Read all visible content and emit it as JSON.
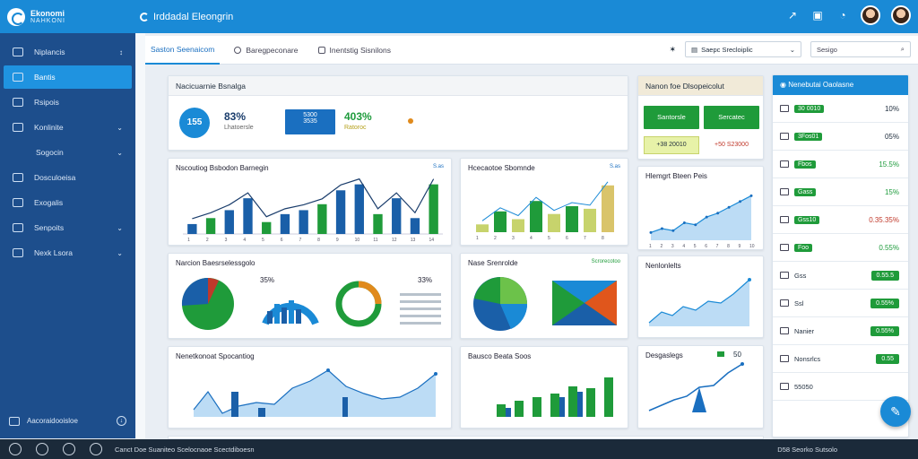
{
  "topbar": {
    "logo_title": "Ekonomi",
    "logo_sub": "NAHKONI",
    "app_title": "Irddadal Eleongrin",
    "icons": [
      "share-icon",
      "clipboard-icon",
      "bell-icon"
    ]
  },
  "sidebar": {
    "items": [
      {
        "label": "Niplancis",
        "chevron": "↕"
      },
      {
        "label": "Bantis",
        "chevron": ""
      },
      {
        "label": "Rsipois",
        "chevron": ""
      },
      {
        "label": "Konlinite",
        "chevron": "⌄"
      },
      {
        "label": "Sogocin",
        "chevron": "⌄"
      },
      {
        "label": "Dosculoeisa",
        "chevron": ""
      },
      {
        "label": "Exogalis",
        "chevron": ""
      },
      {
        "label": "Senpoits",
        "chevron": "⌄"
      },
      {
        "label": "Nexk Lsora",
        "chevron": "⌄"
      }
    ],
    "footer_label": "Aacoraidooisloe"
  },
  "tabs": [
    {
      "label": "Saston Seenaicom"
    },
    {
      "label": "Baregpeconare"
    },
    {
      "label": "Inentstig Sisnilons"
    }
  ],
  "toolbar": {
    "select_label": "Saepc Srecloiplic",
    "search_placeholder": "Sesigo"
  },
  "kpi": {
    "header": "Nacicuarnie Bsnalga",
    "ring_value": "155",
    "pct1": "83%",
    "pct1_sub": "Lhatoersle",
    "btn_top": "5300",
    "btn_bot": "3535",
    "pct2": "403%",
    "pct2_sub": "Ratoroc"
  },
  "summary_card": {
    "header": "Nanon foe Dlsopeicolut",
    "btn1": "Santorsle",
    "btn2": "Sercatec",
    "chip1": "+38 20010",
    "chip2": "+50 S23000"
  },
  "right_panel": {
    "header": "Nenebutai Oaolasne",
    "rows": [
      {
        "tag": "30 0010",
        "value": "10%",
        "style": "pct"
      },
      {
        "tag": "3Fos01",
        "value": "05%",
        "style": "pct"
      },
      {
        "tag": "Fbos",
        "value": "15.5%",
        "style": "pct-green"
      },
      {
        "tag": "Gass",
        "value": "15%",
        "style": "pct-green"
      },
      {
        "tag": "Gss10",
        "value": "0.35.35%",
        "style": "pct-red"
      },
      {
        "tag": "Foo",
        "value": "0.55%",
        "style": "pct-green"
      },
      {
        "tag": "Gss",
        "value": "0.55.5",
        "style": "pill"
      },
      {
        "tag": "Ssl",
        "value": "0.55%",
        "style": "pill"
      },
      {
        "tag": "Nanier",
        "value": "0.55%",
        "style": "pill"
      },
      {
        "tag": "Nonsrlcs",
        "value": "0.55",
        "style": "pill"
      },
      {
        "tag": "55050",
        "value": "",
        "style": "none"
      }
    ]
  },
  "footer": {
    "links": "Canct Doe Suaniteo Scelocnaoe Scectdiboesn",
    "right": "D58 Seorko Sutsolo"
  },
  "charts": {
    "c1_title": "Nscoutiog Bsbodon Barnegin",
    "c1_tag": "S.as",
    "c2_title": "Hcecaotoe Sbomnde",
    "c2_tag": "S.as",
    "c3_title": "Hlemgrt Bteen Peis",
    "c4_title": "Narcion Baesrselessgolo",
    "c4_val": "35%",
    "c4_val2": "33%",
    "c5_title": "Nase Srenrolde",
    "c5_tag": "Scrorecotoo",
    "c6_title": "Nenlonlelts",
    "c7_title": "Nenetkonoat Spocantiog",
    "c8_title": "Bausco Beata Soos",
    "c9_title": "Desgaslegs",
    "c9_val": "50"
  },
  "chart_data": [
    {
      "type": "bar",
      "title": "Nscoutiog Bsbodon Barnegin",
      "categories": [
        "1",
        "2",
        "3",
        "4",
        "5",
        "6",
        "7",
        "8",
        "9",
        "10",
        "11",
        "12",
        "13",
        "14"
      ],
      "values": [
        5,
        8,
        12,
        18,
        6,
        10,
        12,
        15,
        22,
        25,
        10,
        18,
        8,
        25
      ],
      "ylim": [
        0,
        28
      ]
    },
    {
      "type": "bar",
      "title": "Hcecaotoe Sbomnde",
      "categories": [
        "1",
        "2",
        "3",
        "4",
        "5",
        "6",
        "7",
        "8"
      ],
      "values": [
        3,
        8,
        5,
        12,
        7,
        10,
        9,
        18
      ],
      "ylim": [
        0,
        20
      ]
    },
    {
      "type": "area",
      "title": "Hlemgrt Bteen Peis",
      "x": [
        1,
        2,
        3,
        4,
        5,
        6,
        7,
        8,
        9,
        10
      ],
      "values": [
        4,
        6,
        5,
        9,
        8,
        12,
        14,
        17,
        20,
        23
      ],
      "ylim": [
        0,
        25
      ]
    }
  ]
}
